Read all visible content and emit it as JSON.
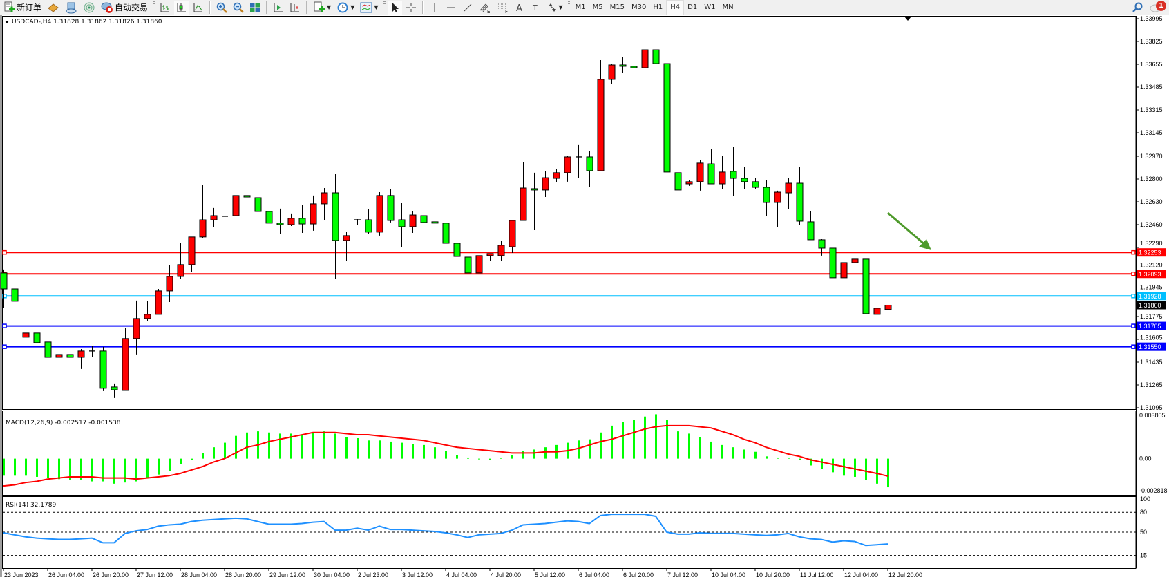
{
  "toolbar": {
    "new_order_label": "新订单",
    "auto_trading_label": "自动交易",
    "timeframes": [
      "M1",
      "M5",
      "M15",
      "M30",
      "H1",
      "H4",
      "D1",
      "W1",
      "MN"
    ],
    "active_timeframe": "H4",
    "notification_count": "1",
    "icons": [
      "new-order-icon",
      "history-book-icon",
      "market-watch-icon",
      "signals-icon",
      "auto-trading-icon",
      "bar-chart-icon",
      "candlestick-icon",
      "line-chart-icon",
      "zoom-in-icon",
      "zoom-out-icon",
      "tile-windows-icon",
      "auto-scroll-icon",
      "chart-shift-icon",
      "indicators-icon",
      "periodicity-icon",
      "templates-icon",
      "cursor-icon",
      "crosshair-icon",
      "vertical-line-icon",
      "horizontal-line-icon",
      "trendline-icon",
      "equidistant-channel-icon",
      "fibonacci-icon",
      "text-icon",
      "text-label-icon",
      "arrows-icon",
      "search-icon",
      "notification-icon"
    ]
  },
  "chart": {
    "header": "USDCAD-,H4  1.31828 1.31862 1.31826 1.31860",
    "bid_price": "1.31860",
    "colors": {
      "bull": "#ff0000",
      "bear": "#00ff00",
      "wick": "#000000",
      "macd_hist": "#00ff00",
      "macd_signal": "#ff0000",
      "rsi": "#1e90ff",
      "arrow": "#4e9a2b"
    },
    "levels": [
      {
        "price": "1.32253",
        "color": "#ff0000"
      },
      {
        "price": "1.32093",
        "color": "#ff0000"
      },
      {
        "price": "1.31928",
        "color": "#00bfff"
      },
      {
        "price": "1.31705",
        "color": "#0000ff"
      },
      {
        "price": "1.31550",
        "color": "#0000ff"
      }
    ],
    "annotation": "green-arrow-pointing-down-right"
  },
  "chart_data": [
    {
      "type": "candlestick",
      "symbol": "USDCAD-",
      "timeframe": "H4",
      "ylim": [
        1.31095,
        1.33995
      ],
      "y_ticks": [
        "1.33995",
        "1.33825",
        "1.33655",
        "1.33485",
        "1.33315",
        "1.33145",
        "1.32970",
        "1.32800",
        "1.32630",
        "1.32460",
        "1.32290",
        "1.32120",
        "1.31945",
        "1.31775",
        "1.31605",
        "1.31435",
        "1.31265",
        "1.31095"
      ],
      "x_labels": [
        "23 Jun 2023",
        "26 Jun 04:00",
        "26 Jun 20:00",
        "27 Jun 12:00",
        "28 Jun 04:00",
        "28 Jun 20:00",
        "29 Jun 12:00",
        "30 Jun 04:00",
        "2 Jul 23:00",
        "3 Jul 12:00",
        "4 Jul 04:00",
        "4 Jul 20:00",
        "5 Jul 12:00",
        "6 Jul 04:00",
        "6 Jul 20:00",
        "7 Jul 12:00",
        "10 Jul 04:00",
        "10 Jul 20:00",
        "11 Jul 12:00",
        "12 Jul 04:00",
        "12 Jul 20:00"
      ],
      "ohlc": [
        [
          1.321,
          1.32126,
          1.31842,
          1.31981
        ],
        [
          1.31981,
          1.32017,
          1.3178,
          1.31889
        ],
        [
          1.31621,
          1.31662,
          1.31605,
          1.31652
        ],
        [
          1.31652,
          1.31729,
          1.31528,
          1.3158
        ],
        [
          1.31585,
          1.31693,
          1.31384,
          1.31471
        ],
        [
          1.31471,
          1.31714,
          1.31471,
          1.31492
        ],
        [
          1.31492,
          1.31765,
          1.31353,
          1.31471
        ],
        [
          1.31471,
          1.31533,
          1.31384,
          1.31518
        ],
        [
          1.31518,
          1.31554,
          1.31471,
          1.31518
        ],
        [
          1.31518,
          1.31549,
          1.31219,
          1.3124
        ],
        [
          1.3125,
          1.31276,
          1.31168,
          1.31229
        ],
        [
          1.31224,
          1.31688,
          1.31224,
          1.31611
        ],
        [
          1.31611,
          1.31894,
          1.31492,
          1.3176
        ],
        [
          1.3176,
          1.31889,
          1.31739,
          1.31791
        ],
        [
          1.31791,
          1.31981,
          1.31791,
          1.31966
        ],
        [
          1.31966,
          1.32156,
          1.31883,
          1.32074
        ],
        [
          1.32074,
          1.32321,
          1.32053,
          1.32162
        ],
        [
          1.32162,
          1.32368,
          1.3211,
          1.32368
        ],
        [
          1.32368,
          1.32759,
          1.32362,
          1.32496
        ],
        [
          1.32496,
          1.32584,
          1.3244,
          1.32527
        ],
        [
          1.32522,
          1.32589,
          1.32481,
          1.32522
        ],
        [
          1.32527,
          1.32713,
          1.32419,
          1.32677
        ],
        [
          1.32677,
          1.3278,
          1.32615,
          1.32666
        ],
        [
          1.32661,
          1.32707,
          1.32517,
          1.32558
        ],
        [
          1.32558,
          1.32847,
          1.32393,
          1.32471
        ],
        [
          1.32471,
          1.32579,
          1.32388,
          1.3246
        ],
        [
          1.3246,
          1.32543,
          1.3245,
          1.32507
        ],
        [
          1.32507,
          1.32604,
          1.32398,
          1.32465
        ],
        [
          1.32465,
          1.32677,
          1.32414,
          1.32615
        ],
        [
          1.32615,
          1.32733,
          1.32496,
          1.32697
        ],
        [
          1.32697,
          1.32836,
          1.32053,
          1.32342
        ],
        [
          1.32342,
          1.32404,
          1.32192,
          1.32378
        ],
        [
          1.32496,
          1.32501,
          1.32455,
          1.32496
        ],
        [
          1.32496,
          1.32574,
          1.32388,
          1.32404
        ],
        [
          1.32404,
          1.32702,
          1.32378,
          1.32677
        ],
        [
          1.32677,
          1.32728,
          1.32476,
          1.32491
        ],
        [
          1.32496,
          1.3262,
          1.3229,
          1.32445
        ],
        [
          1.32445,
          1.32558,
          1.32398,
          1.32532
        ],
        [
          1.32527,
          1.32538,
          1.32455,
          1.32476
        ],
        [
          1.32481,
          1.32563,
          1.32429,
          1.32471
        ],
        [
          1.32471,
          1.32553,
          1.32285,
          1.32321
        ],
        [
          1.32321,
          1.32435,
          1.32028,
          1.32223
        ],
        [
          1.32218,
          1.32223,
          1.32028,
          1.321
        ],
        [
          1.321,
          1.3227,
          1.32074,
          1.32229
        ],
        [
          1.32229,
          1.32244,
          1.32192,
          1.32244
        ],
        [
          1.32229,
          1.32337,
          1.32187,
          1.32306
        ],
        [
          1.32295,
          1.32486,
          1.32249,
          1.32491
        ],
        [
          1.32491,
          1.32924,
          1.32491,
          1.32733
        ],
        [
          1.32728,
          1.32847,
          1.32419,
          1.32718
        ],
        [
          1.32718,
          1.32857,
          1.32666,
          1.3281
        ],
        [
          1.32805,
          1.32872,
          1.32774,
          1.32847
        ],
        [
          1.32847,
          1.3297,
          1.3278,
          1.32965
        ],
        [
          1.32965,
          1.33053,
          1.32805,
          1.32965
        ],
        [
          1.32965,
          1.33011,
          1.32738,
          1.32862
        ],
        [
          1.32862,
          1.33686,
          1.32862,
          1.33542
        ],
        [
          1.33542,
          1.3366,
          1.33511,
          1.3365
        ],
        [
          1.3365,
          1.33712,
          1.33588,
          1.3364
        ],
        [
          1.3364,
          1.33722,
          1.33578,
          1.33629
        ],
        [
          1.33629,
          1.33794,
          1.33568,
          1.33763
        ],
        [
          1.33763,
          1.33856,
          1.33568,
          1.3366
        ],
        [
          1.3366,
          1.33691,
          1.32841,
          1.32852
        ],
        [
          1.32847,
          1.32883,
          1.32646,
          1.32718
        ],
        [
          1.32764,
          1.32795,
          1.32749,
          1.3278
        ],
        [
          1.3278,
          1.32939,
          1.32713,
          1.32919
        ],
        [
          1.32913,
          1.33022,
          1.32764,
          1.32764
        ],
        [
          1.32764,
          1.3297,
          1.32728,
          1.32852
        ],
        [
          1.32857,
          1.33037,
          1.32671,
          1.32805
        ],
        [
          1.32805,
          1.32888,
          1.32728,
          1.3278
        ],
        [
          1.3278,
          1.32805,
          1.32728,
          1.32738
        ],
        [
          1.32738,
          1.3279,
          1.32522,
          1.32625
        ],
        [
          1.32625,
          1.32713,
          1.3244,
          1.32702
        ],
        [
          1.32697,
          1.3281,
          1.32574,
          1.32769
        ],
        [
          1.32769,
          1.32888,
          1.3246,
          1.32486
        ],
        [
          1.32481,
          1.32563,
          1.32347,
          1.32347
        ],
        [
          1.32347,
          1.32352,
          1.32229,
          1.32285
        ],
        [
          1.32285,
          1.32306,
          1.31992,
          1.32064
        ],
        [
          1.32064,
          1.32275,
          1.32023,
          1.32177
        ],
        [
          1.32177,
          1.32218,
          1.32053,
          1.32203
        ],
        [
          1.32203,
          1.32337,
          1.31265,
          1.31796
        ],
        [
          1.31791,
          1.31986,
          1.31724,
          1.31837
        ],
        [
          1.31828,
          1.31862,
          1.31826,
          1.3186
        ]
      ]
    },
    {
      "type": "bar",
      "title": "MACD(12,26,9) -0.002517 -0.001538",
      "ylim": [
        -0.002818,
        0.003805
      ],
      "y_ticks": [
        "0.003805",
        "0.00",
        "-0.002818"
      ],
      "macd": [
        -0.0015,
        -0.0015,
        -0.0015,
        -0.0016,
        -0.0017,
        -0.0018,
        -0.0019,
        -0.0019,
        -0.002,
        -0.002,
        -0.0022,
        -0.0021,
        -0.002,
        -0.0017,
        -0.0014,
        -0.0011,
        -0.0005,
        -0.0001,
        0.0005,
        0.001,
        0.0014,
        0.002,
        0.0023,
        0.0024,
        0.0023,
        0.0022,
        0.0022,
        0.0021,
        0.0023,
        0.0024,
        0.0022,
        0.0019,
        0.0018,
        0.0016,
        0.0016,
        0.0015,
        0.0014,
        0.0013,
        0.0012,
        0.001,
        0.0007,
        0.0003,
        0.0001,
        0.0,
        -0.0001,
        0.0001,
        0.0003,
        0.0007,
        0.0008,
        0.001,
        0.0012,
        0.0014,
        0.0016,
        0.0017,
        0.0023,
        0.0029,
        0.0032,
        0.0034,
        0.0037,
        0.0039,
        0.0034,
        0.0024,
        0.0022,
        0.0019,
        0.0015,
        0.0012,
        0.001,
        0.0008,
        0.0006,
        0.0002,
        0.0001,
        0.0001,
        -0.0001,
        -0.0006,
        -0.0009,
        -0.0012,
        -0.0015,
        -0.0016,
        -0.0019,
        -0.0022,
        -0.002517
      ],
      "signal": [
        -0.0024,
        -0.0023,
        -0.0021,
        -0.002,
        -0.0018,
        -0.0017,
        -0.0016,
        -0.0016,
        -0.0016,
        -0.0017,
        -0.0017,
        -0.0017,
        -0.0018,
        -0.0017,
        -0.0016,
        -0.0015,
        -0.0013,
        -0.001,
        -0.0007,
        -0.0003,
        0.0,
        0.0005,
        0.001,
        0.0012,
        0.0015,
        0.0017,
        0.0019,
        0.0021,
        0.0023,
        0.0023,
        0.0023,
        0.0022,
        0.0021,
        0.0021,
        0.002,
        0.0019,
        0.0018,
        0.0017,
        0.0016,
        0.0014,
        0.0012,
        0.001,
        0.0009,
        0.0008,
        0.0007,
        0.0006,
        0.0005,
        0.0005,
        0.0005,
        0.0006,
        0.0006,
        0.0007,
        0.0009,
        0.0012,
        0.0015,
        0.0017,
        0.002,
        0.0023,
        0.0026,
        0.0028,
        0.0029,
        0.0029,
        0.0029,
        0.0028,
        0.0027,
        0.0024,
        0.0021,
        0.0017,
        0.0014,
        0.001,
        0.0007,
        0.0004,
        0.0002,
        -0.0001,
        -0.0003,
        -0.0005,
        -0.0007,
        -0.0009,
        -0.0011,
        -0.0013,
        -0.001538
      ]
    },
    {
      "type": "line",
      "title": "RSI(14) 32.1789",
      "ylim": [
        0,
        100
      ],
      "y_ticks": [
        "100",
        "80",
        "50",
        "15"
      ],
      "levels": [
        80,
        50,
        15
      ],
      "values": [
        49,
        46,
        43,
        41,
        40,
        39,
        39,
        40,
        41,
        34,
        34,
        48,
        52,
        54,
        59,
        61,
        62,
        66,
        68,
        69,
        70,
        71,
        70,
        66,
        62,
        62,
        62,
        63,
        65,
        66,
        53,
        53,
        56,
        53,
        59,
        54,
        54,
        53,
        52,
        51,
        49,
        46,
        42,
        46,
        47,
        48,
        53,
        61,
        62,
        63,
        65,
        67,
        66,
        63,
        75,
        77,
        77,
        77,
        77,
        74,
        50,
        47,
        47,
        49,
        48,
        48,
        48,
        47,
        46,
        45,
        46,
        48,
        43,
        40,
        39,
        35,
        37,
        36,
        30,
        31,
        32.1789
      ]
    }
  ]
}
